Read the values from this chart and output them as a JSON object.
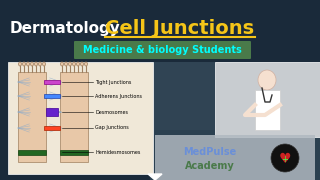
{
  "bg_color": "#1a2a3a",
  "title_dermatology": "Dermatology",
  "title_cell_junctions": "Cell Junctions",
  "subtitle": "Medicine & biology Students",
  "subtitle_bg": "#4a7a4a",
  "subtitle_text_color": "#00ffff",
  "dermatology_color": "#ffffff",
  "cell_junctions_color": "#f5c518",
  "medpulse_text": "MedPulse",
  "academy_text": "Academy",
  "medpulse_color": "#6a8fd8",
  "academy_color": "#4a7a4a",
  "junction_labels": [
    "Tight Junctions",
    "Adherens Junctions",
    "Desmosomes",
    "Gap Junctions",
    "Hemidesmosomes"
  ],
  "left_panel_bg": "#f0e8d8",
  "bottom_panel_bg": "#b0b8c0",
  "doctor_panel_bg": "#c8ccd0"
}
